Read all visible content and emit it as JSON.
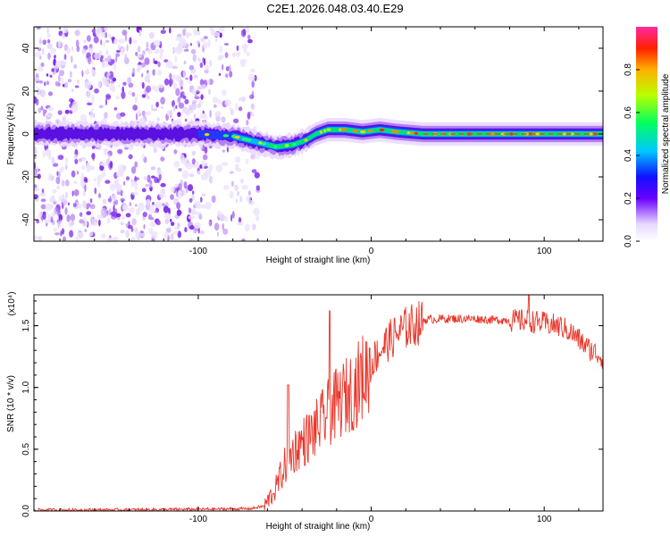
{
  "title": "C2E1.2026.048.03.40.E29",
  "colors": {
    "snr_line": "#e8362a",
    "ridge": "#6a0adb",
    "bg": "#ffffff"
  },
  "chart_data": [
    {
      "type": "heatmap",
      "title": "C2E1.2026.048.03.40.E29",
      "xlabel": "Height of straight line (km)",
      "ylabel": "Frequency (Hz)",
      "xlim": [
        -195,
        134
      ],
      "ylim": [
        -50,
        50
      ],
      "xticks": [
        -100,
        0,
        100
      ],
      "xtick_labels": [
        "-100",
        "0",
        "100"
      ],
      "yticks": [
        -40,
        -20,
        0,
        20,
        40
      ],
      "ytick_labels": [
        "-40",
        "-20",
        "0",
        "20",
        "40"
      ],
      "ridge": {
        "x": [
          -195,
          -100,
          -80,
          -65,
          -55,
          -45,
          -38,
          -32,
          -25,
          -15,
          -5,
          5,
          15,
          30,
          134
        ],
        "y": [
          0,
          0,
          -1,
          -4,
          -6,
          -5,
          -3,
          0,
          2,
          2,
          1,
          2,
          1,
          0,
          0
        ]
      },
      "colorbar": {
        "label": "Normalized spectral amplitude",
        "range": [
          0,
          1
        ],
        "ticks": [
          "0.0",
          "0.2",
          "0.4",
          "0.6",
          "0.8"
        ]
      }
    },
    {
      "type": "line",
      "xlabel": "Height of straight line (km)",
      "ylabel": "SNR (10 * v/v)",
      "scale_label": "(x10⁴)",
      "xlim": [
        -195,
        134
      ],
      "ylim": [
        0,
        1.75
      ],
      "xticks": [
        -100,
        0,
        100
      ],
      "xtick_labels": [
        "-100",
        "0",
        "100"
      ],
      "yticks": [
        0.0,
        0.5,
        1.0,
        1.5
      ],
      "ytick_labels": [
        "0.0",
        "0.5",
        "1.0",
        "1.5"
      ],
      "series": [
        {
          "name": "SNR",
          "x": [
            -195,
            -150,
            -100,
            -70,
            -62,
            -55,
            -50,
            -46,
            -42,
            -38,
            -34,
            -30,
            -26,
            -22,
            -18,
            -14,
            -10,
            -6,
            -2,
            2,
            6,
            10,
            15,
            20,
            25,
            30,
            40,
            50,
            60,
            70,
            80,
            90,
            100,
            110,
            115,
            120,
            125,
            134
          ],
          "y": [
            0.01,
            0.01,
            0.015,
            0.02,
            0.04,
            0.2,
            0.38,
            0.48,
            0.55,
            0.6,
            0.65,
            0.72,
            0.8,
            0.86,
            0.92,
            0.97,
            1.02,
            1.1,
            1.18,
            1.26,
            1.33,
            1.39,
            1.45,
            1.5,
            1.53,
            1.55,
            1.56,
            1.56,
            1.56,
            1.55,
            1.55,
            1.55,
            1.53,
            1.5,
            1.46,
            1.4,
            1.33,
            1.25
          ]
        }
      ],
      "peaks": [
        {
          "x": -48,
          "y": 1.02
        },
        {
          "x": -24,
          "y": 1.62
        },
        {
          "x": 91,
          "y": 1.75
        }
      ]
    }
  ]
}
